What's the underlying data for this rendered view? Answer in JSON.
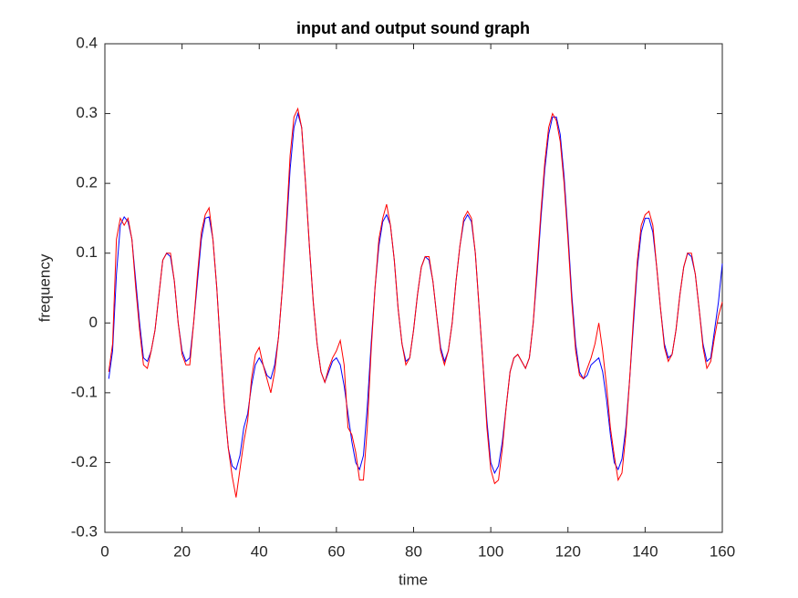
{
  "chart_data": {
    "type": "line",
    "title": "input and output sound graph",
    "xlabel": "time",
    "ylabel": "frequency",
    "x": [
      1,
      2,
      3,
      4,
      5,
      6,
      7,
      8,
      9,
      10,
      11,
      12,
      13,
      14,
      15,
      16,
      17,
      18,
      19,
      20,
      21,
      22,
      23,
      24,
      25,
      26,
      27,
      28,
      29,
      30,
      31,
      32,
      33,
      34,
      35,
      36,
      37,
      38,
      39,
      40,
      41,
      42,
      43,
      44,
      45,
      46,
      47,
      48,
      49,
      50,
      51,
      52,
      53,
      54,
      55,
      56,
      57,
      58,
      59,
      60,
      61,
      62,
      63,
      64,
      65,
      66,
      67,
      68,
      69,
      70,
      71,
      72,
      73,
      74,
      75,
      76,
      77,
      78,
      79,
      80,
      81,
      82,
      83,
      84,
      85,
      86,
      87,
      88,
      89,
      90,
      91,
      92,
      93,
      94,
      95,
      96,
      97,
      98,
      99,
      100,
      101,
      102,
      103,
      104,
      105,
      106,
      107,
      108,
      109,
      110,
      111,
      112,
      113,
      114,
      115,
      116,
      117,
      118,
      119,
      120,
      121,
      122,
      123,
      124,
      125,
      126,
      127,
      128,
      129,
      130,
      131,
      132,
      133,
      134,
      135,
      136,
      137,
      138,
      139,
      140,
      141,
      142,
      143,
      144,
      145,
      146,
      147,
      148,
      149,
      150,
      151,
      152,
      153,
      154,
      155,
      156,
      157,
      158,
      159,
      160
    ],
    "series": [
      {
        "color": "#0000ff",
        "values": [
          -0.08,
          -0.04,
          0.07,
          0.14,
          0.152,
          0.145,
          0.12,
          0.06,
          0.0,
          -0.05,
          -0.055,
          -0.04,
          -0.01,
          0.04,
          0.09,
          0.1,
          0.095,
          0.06,
          0.0,
          -0.04,
          -0.055,
          -0.05,
          0.0,
          0.06,
          0.12,
          0.15,
          0.152,
          0.12,
          0.05,
          -0.04,
          -0.12,
          -0.18,
          -0.205,
          -0.21,
          -0.19,
          -0.15,
          -0.13,
          -0.09,
          -0.06,
          -0.05,
          -0.06,
          -0.075,
          -0.08,
          -0.06,
          -0.02,
          0.05,
          0.13,
          0.22,
          0.28,
          0.3,
          0.28,
          0.2,
          0.11,
          0.03,
          -0.03,
          -0.07,
          -0.085,
          -0.07,
          -0.055,
          -0.05,
          -0.06,
          -0.09,
          -0.13,
          -0.17,
          -0.2,
          -0.21,
          -0.19,
          -0.12,
          -0.03,
          0.05,
          0.11,
          0.145,
          0.155,
          0.14,
          0.09,
          0.02,
          -0.03,
          -0.055,
          -0.05,
          -0.01,
          0.04,
          0.08,
          0.095,
          0.09,
          0.06,
          0.01,
          -0.035,
          -0.055,
          -0.04,
          0.0,
          0.06,
          0.11,
          0.145,
          0.155,
          0.145,
          0.1,
          0.02,
          -0.06,
          -0.14,
          -0.2,
          -0.215,
          -0.205,
          -0.17,
          -0.12,
          -0.07,
          -0.05,
          -0.045,
          -0.055,
          -0.065,
          -0.05,
          0.0,
          0.07,
          0.15,
          0.22,
          0.27,
          0.295,
          0.295,
          0.27,
          0.21,
          0.13,
          0.04,
          -0.03,
          -0.07,
          -0.08,
          -0.075,
          -0.06,
          -0.055,
          -0.05,
          -0.07,
          -0.11,
          -0.16,
          -0.2,
          -0.21,
          -0.195,
          -0.15,
          -0.08,
          0.0,
          0.08,
          0.13,
          0.15,
          0.15,
          0.13,
          0.08,
          0.02,
          -0.03,
          -0.05,
          -0.045,
          -0.01,
          0.04,
          0.08,
          0.1,
          0.095,
          0.07,
          0.02,
          -0.03,
          -0.055,
          -0.05,
          -0.01,
          0.03,
          0.085
        ]
      },
      {
        "color": "#ff0000",
        "values": [
          -0.07,
          -0.03,
          0.12,
          0.15,
          0.14,
          0.15,
          0.12,
          0.05,
          -0.01,
          -0.06,
          -0.065,
          -0.04,
          -0.01,
          0.04,
          0.09,
          0.1,
          0.1,
          0.06,
          0.0,
          -0.045,
          -0.06,
          -0.06,
          0.0,
          0.07,
          0.13,
          0.155,
          0.165,
          0.12,
          0.05,
          -0.04,
          -0.12,
          -0.18,
          -0.22,
          -0.25,
          -0.21,
          -0.17,
          -0.14,
          -0.08,
          -0.045,
          -0.035,
          -0.06,
          -0.08,
          -0.1,
          -0.07,
          -0.02,
          0.05,
          0.14,
          0.24,
          0.295,
          0.307,
          0.28,
          0.2,
          0.11,
          0.03,
          -0.03,
          -0.07,
          -0.085,
          -0.065,
          -0.05,
          -0.04,
          -0.025,
          -0.06,
          -0.15,
          -0.16,
          -0.185,
          -0.225,
          -0.225,
          -0.15,
          -0.04,
          0.05,
          0.12,
          0.15,
          0.17,
          0.14,
          0.09,
          0.02,
          -0.03,
          -0.06,
          -0.05,
          -0.01,
          0.04,
          0.08,
          0.095,
          0.095,
          0.06,
          0.01,
          -0.04,
          -0.06,
          -0.04,
          0.0,
          0.06,
          0.11,
          0.15,
          0.16,
          0.15,
          0.1,
          0.02,
          -0.06,
          -0.15,
          -0.21,
          -0.23,
          -0.225,
          -0.18,
          -0.12,
          -0.07,
          -0.05,
          -0.045,
          -0.055,
          -0.065,
          -0.05,
          0.0,
          0.08,
          0.16,
          0.23,
          0.28,
          0.3,
          0.29,
          0.26,
          0.2,
          0.12,
          0.03,
          -0.04,
          -0.075,
          -0.08,
          -0.065,
          -0.05,
          -0.03,
          0.0,
          -0.04,
          -0.09,
          -0.15,
          -0.19,
          -0.225,
          -0.215,
          -0.16,
          -0.08,
          0.01,
          0.09,
          0.14,
          0.155,
          0.16,
          0.14,
          0.08,
          0.02,
          -0.035,
          -0.055,
          -0.045,
          -0.01,
          0.04,
          0.08,
          0.1,
          0.1,
          0.07,
          0.02,
          -0.035,
          -0.065,
          -0.055,
          -0.02,
          0.01,
          0.03
        ]
      }
    ],
    "xlim": [
      0,
      160
    ],
    "xticks": [
      0,
      20,
      40,
      60,
      80,
      100,
      120,
      140,
      160
    ],
    "ylim": [
      -0.3,
      0.4
    ],
    "yticks": [
      -0.3,
      -0.2,
      -0.1,
      0,
      0.1,
      0.2,
      0.3,
      0.4
    ],
    "grid": false
  }
}
